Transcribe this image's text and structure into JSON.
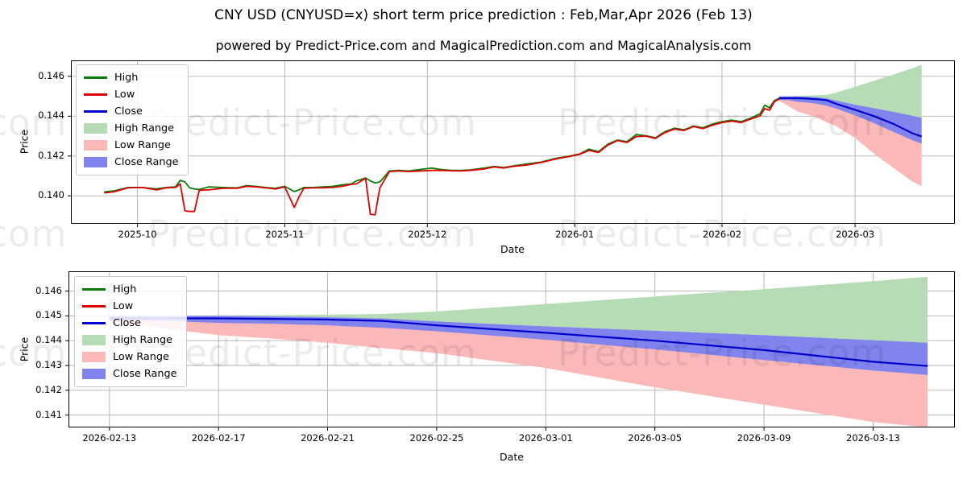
{
  "header": {
    "title": "CNY USD (CNYUSD=x) short term price prediction : Feb,Mar,Apr 2026 (Feb 13)",
    "subtitle": "powered by Predict-Price.com and MagicalPrediction.com and MagicalAnalysis.com"
  },
  "watermark": "Predict-Price.com",
  "colors": {
    "high": "#0a7c0a",
    "low": "#e00000",
    "close": "#0000cd",
    "high_range": "#b5dcb5",
    "low_range": "#fbb8b8",
    "close_range": "#8084ec",
    "grid": "#b0b0b0",
    "axis": "#000000"
  },
  "legend": [
    {
      "label": "High",
      "swatch": "line",
      "color_key": "high"
    },
    {
      "label": "Low",
      "swatch": "line",
      "color_key": "low"
    },
    {
      "label": "Close",
      "swatch": "line",
      "color_key": "close"
    },
    {
      "label": "High Range",
      "swatch": "patch",
      "color_key": "high_range"
    },
    {
      "label": "Low Range",
      "swatch": "patch",
      "color_key": "low_range"
    },
    {
      "label": "Close Range",
      "swatch": "patch",
      "color_key": "close_range"
    }
  ],
  "chart_data": [
    {
      "type": "line",
      "title": "",
      "xlabel": "Date",
      "ylabel": "Price",
      "grid": true,
      "legend_position": "upper-left",
      "xlim": [
        "2025-09-17",
        "2026-03-22"
      ],
      "ylim": [
        0.1386,
        0.1468
      ],
      "xticks": [
        {
          "v": "2025-10-01",
          "label": "2025-10"
        },
        {
          "v": "2025-11-01",
          "label": "2025-11"
        },
        {
          "v": "2025-12-01",
          "label": "2025-12"
        },
        {
          "v": "2026-01-01",
          "label": "2026-01"
        },
        {
          "v": "2026-02-01",
          "label": "2026-02"
        },
        {
          "v": "2026-03-01",
          "label": "2026-03"
        }
      ],
      "yticks": [
        {
          "v": 0.14,
          "label": "0.140"
        },
        {
          "v": 0.142,
          "label": "0.142"
        },
        {
          "v": 0.144,
          "label": "0.144"
        },
        {
          "v": 0.146,
          "label": "0.146"
        }
      ],
      "series": {
        "history": {
          "dates": [
            "2025-09-24",
            "2025-09-26",
            "2025-09-29",
            "2025-10-02",
            "2025-10-05",
            "2025-10-07",
            "2025-10-09",
            "2025-10-10",
            "2025-10-11",
            "2025-10-12",
            "2025-10-13",
            "2025-10-14",
            "2025-10-16",
            "2025-10-19",
            "2025-10-22",
            "2025-10-24",
            "2025-10-26",
            "2025-10-28",
            "2025-10-30",
            "2025-11-01",
            "2025-11-03",
            "2025-11-04",
            "2025-11-05",
            "2025-11-07",
            "2025-11-09",
            "2025-11-11",
            "2025-11-13",
            "2025-11-15",
            "2025-11-16",
            "2025-11-18",
            "2025-11-19",
            "2025-11-20",
            "2025-11-21",
            "2025-11-23",
            "2025-11-25",
            "2025-11-27",
            "2025-12-02",
            "2025-12-04",
            "2025-12-06",
            "2025-12-08",
            "2025-12-10",
            "2025-12-13",
            "2025-12-15",
            "2025-12-17",
            "2025-12-19",
            "2025-12-22",
            "2025-12-25",
            "2025-12-28",
            "2025-12-31",
            "2026-01-02",
            "2026-01-04",
            "2026-01-06",
            "2026-01-08",
            "2026-01-10",
            "2026-01-12",
            "2026-01-14",
            "2026-01-16",
            "2026-01-18",
            "2026-01-20",
            "2026-01-22",
            "2026-01-24",
            "2026-01-26",
            "2026-01-28",
            "2026-01-30",
            "2026-02-01",
            "2026-02-03",
            "2026-02-05",
            "2026-02-07",
            "2026-02-09",
            "2026-02-10",
            "2026-02-11",
            "2026-02-12",
            "2026-02-13"
          ],
          "high": [
            0.1402,
            0.14025,
            0.14042,
            0.14042,
            0.14035,
            0.14042,
            0.14045,
            0.14078,
            0.1407,
            0.1404,
            0.14035,
            0.14032,
            0.14045,
            0.14042,
            0.1404,
            0.14052,
            0.14048,
            0.14042,
            0.14038,
            0.14048,
            0.14022,
            0.1403,
            0.14042,
            0.14042,
            0.14045,
            0.14048,
            0.14055,
            0.1406,
            0.14075,
            0.1409,
            0.14075,
            0.14065,
            0.1407,
            0.14125,
            0.14128,
            0.14125,
            0.1414,
            0.14132,
            0.14128,
            0.14128,
            0.1413,
            0.1414,
            0.14148,
            0.14142,
            0.1415,
            0.1416,
            0.1417,
            0.14188,
            0.142,
            0.1421,
            0.14235,
            0.14222,
            0.1426,
            0.1428,
            0.14272,
            0.14308,
            0.14302,
            0.14292,
            0.14322,
            0.1434,
            0.14332,
            0.1435,
            0.14342,
            0.1436,
            0.14372,
            0.1438,
            0.14372,
            0.1439,
            0.14412,
            0.14455,
            0.14442,
            0.14478,
            0.1449
          ],
          "low": [
            0.14015,
            0.1402,
            0.1404,
            0.14042,
            0.1403,
            0.1404,
            0.14042,
            0.1406,
            0.13925,
            0.13922,
            0.13922,
            0.14028,
            0.1403,
            0.14038,
            0.14038,
            0.14048,
            0.14045,
            0.1404,
            0.14035,
            0.14045,
            0.13942,
            0.13995,
            0.14038,
            0.1404,
            0.1404,
            0.14042,
            0.14048,
            0.14058,
            0.1406,
            0.14088,
            0.13908,
            0.13905,
            0.1404,
            0.14122,
            0.14125,
            0.14122,
            0.14128,
            0.14128,
            0.14126,
            0.14125,
            0.14128,
            0.14135,
            0.14145,
            0.1414,
            0.14148,
            0.14155,
            0.14168,
            0.14185,
            0.14198,
            0.14208,
            0.14228,
            0.14218,
            0.14255,
            0.14278,
            0.14268,
            0.14298,
            0.143,
            0.14288,
            0.14318,
            0.14335,
            0.14328,
            0.14348,
            0.14338,
            0.14355,
            0.14368,
            0.14375,
            0.14368,
            0.14385,
            0.14402,
            0.14438,
            0.1443,
            0.14472,
            0.14486
          ]
        },
        "forecast": {
          "dates": [
            "2026-02-13",
            "2026-02-15",
            "2026-02-17",
            "2026-02-19",
            "2026-02-21",
            "2026-02-23",
            "2026-02-25",
            "2026-03-01",
            "2026-03-05",
            "2026-03-09",
            "2026-03-13",
            "2026-03-15"
          ],
          "close": [
            0.1449,
            0.1449,
            0.1449,
            0.14488,
            0.14485,
            0.1448,
            0.14462,
            0.14432,
            0.144,
            0.14362,
            0.14315,
            0.14298
          ],
          "close_upper": [
            0.145,
            0.145,
            0.145,
            0.14498,
            0.14495,
            0.1449,
            0.14478,
            0.14458,
            0.1444,
            0.14422,
            0.14402,
            0.14392
          ],
          "close_lower": [
            0.14482,
            0.1448,
            0.14472,
            0.14468,
            0.14462,
            0.14452,
            0.14438,
            0.14404,
            0.14365,
            0.14322,
            0.1428,
            0.14262
          ],
          "high_upper": [
            0.145,
            0.145,
            0.14502,
            0.14503,
            0.14505,
            0.14508,
            0.14518,
            0.14548,
            0.14578,
            0.14608,
            0.1464,
            0.14658
          ],
          "low_lower": [
            0.14478,
            0.1445,
            0.14422,
            0.14408,
            0.14392,
            0.1437,
            0.1435,
            0.1429,
            0.14212,
            0.14142,
            0.14072,
            0.1405
          ]
        }
      }
    },
    {
      "type": "area",
      "title": "",
      "xlabel": "Date",
      "ylabel": "Price",
      "grid": true,
      "legend_position": "upper-left",
      "xlim": [
        "2026-02-11T12:00:00Z",
        "2026-03-16"
      ],
      "ylim": [
        0.1405,
        0.1468
      ],
      "xticks": [
        {
          "v": "2026-02-13",
          "label": "2026-02-13"
        },
        {
          "v": "2026-02-17",
          "label": "2026-02-17"
        },
        {
          "v": "2026-02-21",
          "label": "2026-02-21"
        },
        {
          "v": "2026-02-25",
          "label": "2026-02-25"
        },
        {
          "v": "2026-03-01",
          "label": "2026-03-01"
        },
        {
          "v": "2026-03-05",
          "label": "2026-03-05"
        },
        {
          "v": "2026-03-09",
          "label": "2026-03-09"
        },
        {
          "v": "2026-03-13",
          "label": "2026-03-13"
        }
      ],
      "yticks": [
        {
          "v": 0.141,
          "label": "0.141"
        },
        {
          "v": 0.142,
          "label": "0.142"
        },
        {
          "v": 0.143,
          "label": "0.143"
        },
        {
          "v": 0.144,
          "label": "0.144"
        },
        {
          "v": 0.145,
          "label": "0.145"
        },
        {
          "v": 0.146,
          "label": "0.146"
        }
      ],
      "series": {
        "forecast": {
          "dates": [
            "2026-02-13",
            "2026-02-15",
            "2026-02-17",
            "2026-02-19",
            "2026-02-21",
            "2026-02-23",
            "2026-02-25",
            "2026-03-01",
            "2026-03-05",
            "2026-03-09",
            "2026-03-13",
            "2026-03-15"
          ],
          "close": [
            0.1449,
            0.1449,
            0.1449,
            0.14488,
            0.14485,
            0.1448,
            0.14462,
            0.14432,
            0.144,
            0.14362,
            0.14315,
            0.14298
          ],
          "close_upper": [
            0.145,
            0.145,
            0.145,
            0.14498,
            0.14495,
            0.1449,
            0.14478,
            0.14458,
            0.1444,
            0.14422,
            0.14402,
            0.14392
          ],
          "close_lower": [
            0.14482,
            0.1448,
            0.14472,
            0.14468,
            0.14462,
            0.14452,
            0.14438,
            0.14404,
            0.14365,
            0.14322,
            0.1428,
            0.14262
          ],
          "high_upper": [
            0.145,
            0.145,
            0.14502,
            0.14503,
            0.14505,
            0.14508,
            0.14518,
            0.14548,
            0.14578,
            0.14608,
            0.1464,
            0.14658
          ],
          "low_lower": [
            0.14478,
            0.1445,
            0.14422,
            0.14408,
            0.14392,
            0.1437,
            0.1435,
            0.1429,
            0.14212,
            0.14142,
            0.14072,
            0.1405
          ]
        }
      }
    }
  ]
}
